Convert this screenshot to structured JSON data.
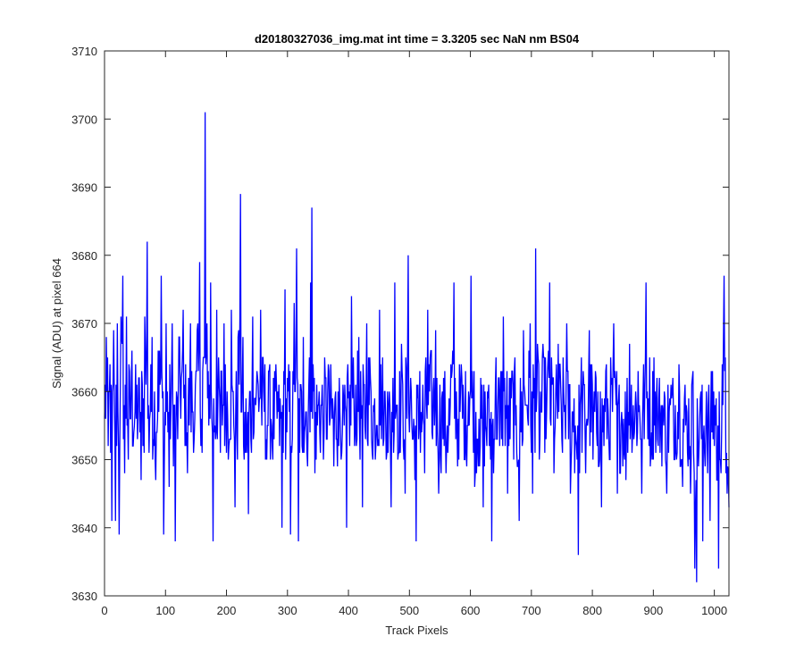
{
  "chart_data": {
    "type": "line",
    "title": "d20180327036_img.mat int time = 3.3205 sec  NaN nm BS04",
    "xlabel": "Track Pixels",
    "ylabel": "Signal (ADU) at pixel 664",
    "xlim": [
      0,
      1024
    ],
    "ylim": [
      3630,
      3710
    ],
    "xticks": [
      0,
      100,
      200,
      300,
      400,
      500,
      600,
      700,
      800,
      900,
      1000
    ],
    "yticks": [
      3630,
      3640,
      3650,
      3660,
      3670,
      3680,
      3690,
      3700,
      3710
    ],
    "grid": false,
    "series_color": "#0000ff",
    "anchor_points": [
      [
        0,
        3656
      ],
      [
        3,
        3668
      ],
      [
        6,
        3652
      ],
      [
        9,
        3664
      ],
      [
        12,
        3641
      ],
      [
        15,
        3669
      ],
      [
        18,
        3641
      ],
      [
        21,
        3670
      ],
      [
        24,
        3639
      ],
      [
        27,
        3671
      ],
      [
        30,
        3677
      ],
      [
        33,
        3648
      ],
      [
        36,
        3671
      ],
      [
        39,
        3650
      ],
      [
        45,
        3666
      ],
      [
        60,
        3647
      ],
      [
        66,
        3671
      ],
      [
        70,
        3682
      ],
      [
        73,
        3651
      ],
      [
        78,
        3668
      ],
      [
        84,
        3647
      ],
      [
        88,
        3666
      ],
      [
        93,
        3677
      ],
      [
        97,
        3639
      ],
      [
        101,
        3670
      ],
      [
        106,
        3646
      ],
      [
        111,
        3670
      ],
      [
        116,
        3638
      ],
      [
        122,
        3668
      ],
      [
        129,
        3672
      ],
      [
        136,
        3648
      ],
      [
        141,
        3670
      ],
      [
        147,
        3653
      ],
      [
        152,
        3669
      ],
      [
        156,
        3679
      ],
      [
        160,
        3651
      ],
      [
        165,
        3701
      ],
      [
        169,
        3659
      ],
      [
        174,
        3676
      ],
      [
        178,
        3638
      ],
      [
        184,
        3672
      ],
      [
        190,
        3651
      ],
      [
        196,
        3670
      ],
      [
        203,
        3650
      ],
      [
        208,
        3672
      ],
      [
        214,
        3643
      ],
      [
        219,
        3668
      ],
      [
        223,
        3689
      ],
      [
        228,
        3652
      ],
      [
        236,
        3642
      ],
      [
        243,
        3671
      ],
      [
        249,
        3660
      ],
      [
        256,
        3672
      ],
      [
        264,
        3650
      ],
      [
        270,
        3663
      ],
      [
        276,
        3650
      ],
      [
        284,
        3660
      ],
      [
        291,
        3640
      ],
      [
        296,
        3675
      ],
      [
        305,
        3639
      ],
      [
        311,
        3673
      ],
      [
        315,
        3681
      ],
      [
        318,
        3638
      ],
      [
        326,
        3668
      ],
      [
        333,
        3649
      ],
      [
        338,
        3676
      ],
      [
        340,
        3687
      ],
      [
        345,
        3648
      ],
      [
        352,
        3660
      ],
      [
        360,
        3654
      ],
      [
        368,
        3663
      ],
      [
        376,
        3649
      ],
      [
        383,
        3660
      ],
      [
        390,
        3654
      ],
      [
        397,
        3640
      ],
      [
        405,
        3674
      ],
      [
        411,
        3654
      ],
      [
        417,
        3668
      ],
      [
        423,
        3643
      ],
      [
        430,
        3670
      ],
      [
        437,
        3660
      ],
      [
        444,
        3650
      ],
      [
        451,
        3672
      ],
      [
        458,
        3653
      ],
      [
        464,
        3660
      ],
      [
        470,
        3643
      ],
      [
        476,
        3676
      ],
      [
        481,
        3650
      ],
      [
        487,
        3667
      ],
      [
        493,
        3645
      ],
      [
        498,
        3680
      ],
      [
        504,
        3655
      ],
      [
        511,
        3638
      ],
      [
        517,
        3663
      ],
      [
        525,
        3648
      ],
      [
        530,
        3672
      ],
      [
        537,
        3654
      ],
      [
        543,
        3669
      ],
      [
        548,
        3645
      ],
      [
        554,
        3660
      ],
      [
        560,
        3648
      ],
      [
        567,
        3658
      ],
      [
        573,
        3676
      ],
      [
        579,
        3649
      ],
      [
        585,
        3664
      ],
      [
        591,
        3650
      ],
      [
        597,
        3660
      ],
      [
        601,
        3677
      ],
      [
        607,
        3646
      ],
      [
        614,
        3656
      ],
      [
        621,
        3643
      ],
      [
        628,
        3660
      ],
      [
        635,
        3638
      ],
      [
        642,
        3665
      ],
      [
        648,
        3652
      ],
      [
        654,
        3671
      ],
      [
        661,
        3645
      ],
      [
        668,
        3663
      ],
      [
        674,
        3655
      ],
      [
        680,
        3641
      ],
      [
        687,
        3669
      ],
      [
        693,
        3658
      ],
      [
        698,
        3670
      ],
      [
        702,
        3645
      ],
      [
        707,
        3681
      ],
      [
        713,
        3650
      ],
      [
        719,
        3667
      ],
      [
        725,
        3657
      ],
      [
        730,
        3676
      ],
      [
        737,
        3648
      ],
      [
        744,
        3667
      ],
      [
        751,
        3651
      ],
      [
        758,
        3670
      ],
      [
        764,
        3645
      ],
      [
        770,
        3659
      ],
      [
        777,
        3636
      ],
      [
        782,
        3665
      ],
      [
        789,
        3648
      ],
      [
        795,
        3669
      ],
      [
        801,
        3650
      ],
      [
        809,
        3660
      ],
      [
        815,
        3643
      ],
      [
        822,
        3663
      ],
      [
        829,
        3650
      ],
      [
        835,
        3670
      ],
      [
        841,
        3645
      ],
      [
        848,
        3657
      ],
      [
        855,
        3647
      ],
      [
        861,
        3667
      ],
      [
        868,
        3653
      ],
      [
        875,
        3663
      ],
      [
        881,
        3645
      ],
      [
        888,
        3676
      ],
      [
        895,
        3649
      ],
      [
        901,
        3665
      ],
      [
        908,
        3652
      ],
      [
        915,
        3658
      ],
      [
        922,
        3645
      ],
      [
        929,
        3661
      ],
      [
        935,
        3650
      ],
      [
        942,
        3664
      ],
      [
        948,
        3646
      ],
      [
        955,
        3657
      ],
      [
        961,
        3645
      ],
      [
        965,
        3663
      ],
      [
        968,
        3634
      ],
      [
        971,
        3632
      ],
      [
        977,
        3659
      ],
      [
        981,
        3638
      ],
      [
        987,
        3660
      ],
      [
        993,
        3641
      ],
      [
        997,
        3663
      ],
      [
        1004,
        3647
      ],
      [
        1007,
        3634
      ],
      [
        1013,
        3664
      ],
      [
        1016,
        3677
      ],
      [
        1019,
        3648
      ],
      [
        1021,
        3645
      ],
      [
        1024,
        3643
      ]
    ],
    "noise_amplitude": 7.5,
    "sample_step": 1
  }
}
